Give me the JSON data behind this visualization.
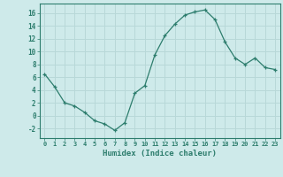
{
  "x": [
    0,
    1,
    2,
    3,
    4,
    5,
    6,
    7,
    8,
    9,
    10,
    11,
    12,
    13,
    14,
    15,
    16,
    17,
    18,
    19,
    20,
    21,
    22,
    23
  ],
  "y": [
    6.5,
    4.5,
    2.0,
    1.5,
    0.5,
    -0.8,
    -1.3,
    -2.3,
    -1.1,
    3.5,
    4.7,
    9.5,
    12.5,
    14.3,
    15.7,
    16.2,
    16.5,
    15.0,
    11.5,
    9.0,
    8.0,
    9.0,
    7.5,
    7.2
  ],
  "xlabel": "Humidex (Indice chaleur)",
  "xlim": [
    -0.5,
    23.5
  ],
  "ylim": [
    -3.5,
    17.5
  ],
  "yticks": [
    -2,
    0,
    2,
    4,
    6,
    8,
    10,
    12,
    14,
    16
  ],
  "xticks": [
    0,
    1,
    2,
    3,
    4,
    5,
    6,
    7,
    8,
    9,
    10,
    11,
    12,
    13,
    14,
    15,
    16,
    17,
    18,
    19,
    20,
    21,
    22,
    23
  ],
  "line_color": "#2d7d6d",
  "marker": "+",
  "bg_color": "#ceeaea",
  "grid_color": "#b8d8d8",
  "spine_color": "#2d7d6d",
  "font_color": "#2d7d6d"
}
